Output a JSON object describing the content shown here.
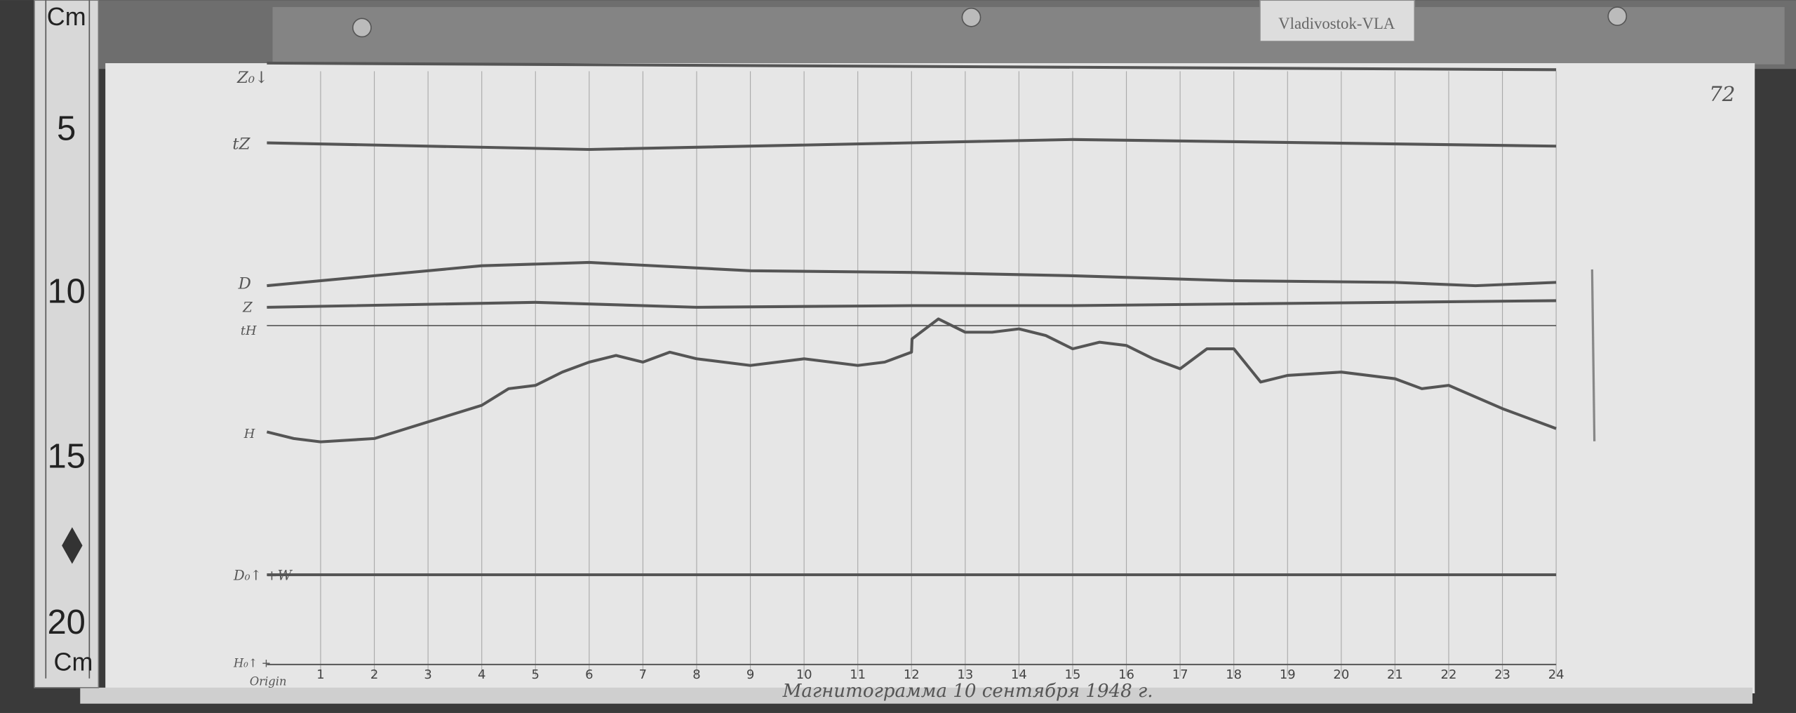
{
  "station_label": "Vladivostok-VLA",
  "sheet_number": "72",
  "caption": "Магнитограмма 10 сентября 1948 г.",
  "ruler": {
    "unit_top": "Cm",
    "unit_bottom": "Cm",
    "marks": [
      "5",
      "10",
      "15",
      "20"
    ]
  },
  "colors": {
    "paper": "#e6e6e6",
    "trace": "#555555",
    "wood": "#3c3c3c"
  },
  "chart_data": {
    "type": "line",
    "title": "",
    "xlabel": "",
    "ylabel": "",
    "x_ticks": [
      "1",
      "2",
      "3",
      "4",
      "5",
      "6",
      "7",
      "8",
      "9",
      "10",
      "11",
      "12",
      "13",
      "14",
      "15",
      "16",
      "17",
      "18",
      "19",
      "20",
      "21",
      "22",
      "23",
      "24"
    ],
    "xlim": [
      0,
      24
    ],
    "y_unit": "cm (paper scale)",
    "grid": "vertical hourly lines",
    "baseline_labels": {
      "Z0": "Z₀↓",
      "tZ": "tZ",
      "D": "D",
      "Z": "Z",
      "tH": "tH",
      "H": "H",
      "D0": "D₀↑ +W",
      "H0": "H₀↑ +",
      "origin": "Origin"
    },
    "series": [
      {
        "name": "Z₀",
        "x": [
          0,
          24
        ],
        "y": [
          3.1,
          3.3
        ]
      },
      {
        "name": "tZ",
        "x": [
          0,
          6,
          12,
          15,
          24
        ],
        "y": [
          5.5,
          5.7,
          5.5,
          5.4,
          5.6
        ]
      },
      {
        "name": "D",
        "x": [
          0,
          2,
          4,
          6,
          9,
          12,
          15,
          18,
          21,
          22.5,
          24
        ],
        "y": [
          9.8,
          9.5,
          9.2,
          9.1,
          9.35,
          9.4,
          9.5,
          9.65,
          9.7,
          9.8,
          9.7
        ]
      },
      {
        "name": "Z",
        "x": [
          0,
          5,
          8,
          12,
          15,
          18,
          24
        ],
        "y": [
          10.45,
          10.3,
          10.45,
          10.4,
          10.4,
          10.35,
          10.25
        ]
      },
      {
        "name": "tH",
        "x": [
          0,
          24
        ],
        "y": [
          11.0,
          11.0
        ]
      },
      {
        "name": "H",
        "x": [
          0,
          0.5,
          1,
          2,
          3,
          4,
          4.5,
          5,
          5.5,
          6,
          6.5,
          7,
          7.5,
          8,
          9,
          10,
          11,
          11.5,
          12,
          12.01,
          12.5,
          13,
          13.5,
          14,
          14.5,
          15,
          15.5,
          16,
          16.5,
          17,
          17.5,
          18,
          18.5,
          19,
          20,
          21,
          21.5,
          22,
          23,
          24
        ],
        "y": [
          14.2,
          14.4,
          14.5,
          14.4,
          13.9,
          13.4,
          12.9,
          12.8,
          12.4,
          12.1,
          11.9,
          12.1,
          11.8,
          12.0,
          12.2,
          12.0,
          12.2,
          12.1,
          11.8,
          11.4,
          10.8,
          11.2,
          11.2,
          11.1,
          11.3,
          11.7,
          11.5,
          11.6,
          12.0,
          12.3,
          11.7,
          11.7,
          12.7,
          12.5,
          12.4,
          12.6,
          12.9,
          12.8,
          13.5,
          14.1
        ]
      },
      {
        "name": "D₀",
        "x": [
          0,
          24
        ],
        "y": [
          18.5,
          18.5
        ]
      },
      {
        "name": "H₀",
        "x": [
          0,
          24
        ],
        "y": [
          21.2,
          21.2
        ]
      }
    ]
  }
}
